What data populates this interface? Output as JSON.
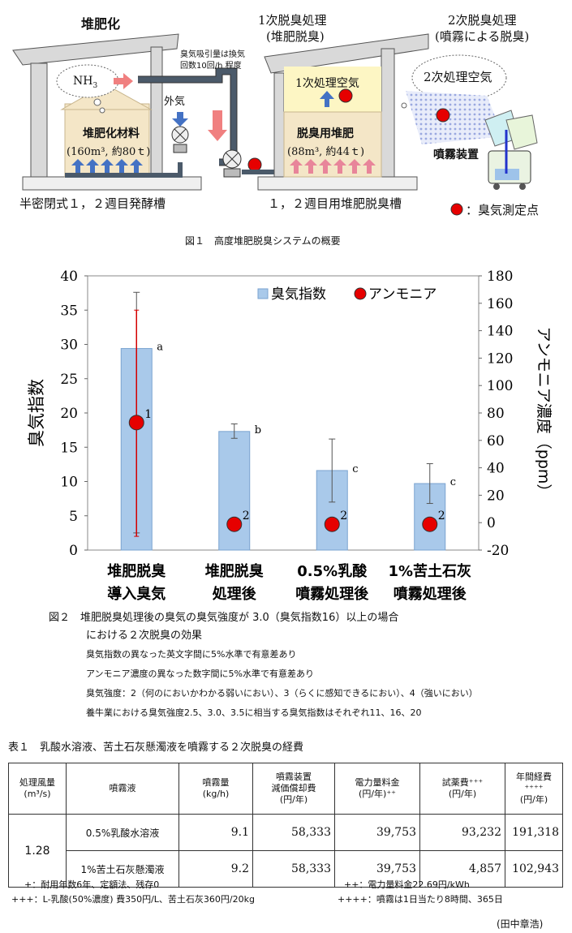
{
  "fig1": {
    "titles": {
      "composting": "堆肥化",
      "primary_line1": "1次脱臭処理",
      "primary_line2": "(堆肥脱臭)",
      "secondary_line1": "2次脱臭処理",
      "secondary_line2": "(噴霧による脱臭)"
    },
    "airflow_note_line1": "臭気吸引量は換気",
    "airflow_note_line2": "回数10回/h 程度",
    "nh3": "NH",
    "nh3_sub": "3",
    "outside_air": "外気",
    "compost_material": "堆肥化材料",
    "compost_material_amount": "(160m³, 約80ｔ)",
    "primary_air": "1次処理空気",
    "deodorizing_compost": "脱臭用堆肥",
    "deodorizing_compost_amount": "(88m³, 約44ｔ)",
    "secondary_air": "2次処理空気",
    "sprayer": "噴霧装置",
    "tank1_label": "半密閉式１，２週目発酵槽",
    "tank2_label": "１，２週目用堆肥脱臭槽",
    "legend_measure": "：臭気測定点",
    "caption": "図１　高度堆肥脱臭システムの概要"
  },
  "chart_data": {
    "type": "bar",
    "categories": [
      [
        "堆肥脱臭",
        "導入臭気"
      ],
      [
        "堆肥脱臭",
        "処理後"
      ],
      [
        "0.5%乳酸",
        "噴霧処理後"
      ],
      [
        "1%苦土石灰",
        "噴霧処理後"
      ]
    ],
    "series": [
      {
        "name": "臭気指数",
        "axis": "left",
        "values": [
          29.4,
          17.3,
          11.6,
          9.7
        ],
        "error_low": [
          2.5,
          16.3,
          7.0,
          6.8
        ],
        "error_high": [
          37.6,
          18.4,
          16.2,
          12.6
        ],
        "labels": [
          "a",
          "b",
          "c",
          "c"
        ]
      },
      {
        "name": "アンモニア",
        "axis": "right",
        "values": [
          73,
          0,
          0,
          0
        ],
        "error_low": [
          -10
        ],
        "error_high": [
          155
        ],
        "labels": [
          "1",
          "2",
          "2",
          "2"
        ]
      }
    ],
    "ylabel": "臭気指数",
    "y2label": "アンモニア濃度（ppm）",
    "ylim": [
      0,
      40
    ],
    "yticks": [
      0,
      5,
      10,
      15,
      20,
      25,
      30,
      35,
      40
    ],
    "y2lim": [
      -20,
      180
    ],
    "y2ticks": [
      -20,
      0,
      20,
      40,
      60,
      80,
      100,
      120,
      140,
      160,
      180
    ],
    "legend": "top-right",
    "colors": {
      "bar": "#a9c9ea",
      "bar_edge": "#7aa3d0",
      "dot": "#e60000",
      "ammonia_error": "#d40000",
      "bar_error": "#555555"
    }
  },
  "fig2": {
    "caption_line1": "図２　堆肥脱臭処理後の臭気の臭気強度が 3.0（臭気指数16）以上の場合",
    "caption_line2": "における２次脱臭の効果",
    "note1": "臭気指数の異なった英文字間に5%水準で有意差あり",
    "note2": "アンモニア濃度の異なった数字間に5%水準で有意差あり",
    "note3": "臭気強度：2（何のにおいかわかる弱いにおい）、3（らくに感知できるにおい）、4（強いにおい）",
    "note4": "養牛業における臭気強度2.5、3.0、3.5に相当する臭気指数はそれぞれ11、16、20"
  },
  "table1": {
    "title": "表１　乳酸水溶液、苦土石灰懸濁液を噴霧する２次脱臭の経費",
    "headers": [
      "処理風量",
      "(m³/s)",
      "噴霧液",
      "噴霧量",
      "(kg/h)",
      "噴霧装置",
      "減価償却費",
      "(円/年)",
      "電力量料金",
      "(円/年)⁺⁺",
      "試薬費⁺⁺⁺",
      "(円/年)",
      "年間経費⁺⁺⁺⁺",
      "(円/年)"
    ],
    "flow": "1.28",
    "rows": [
      {
        "liquid": "0.5%乳酸水溶液",
        "amount": "9.1",
        "depreciation": "58,333",
        "power": "39,753",
        "reagent": "93,232",
        "annual": "191,318"
      },
      {
        "liquid": "1%苦土石灰懸濁液",
        "amount": "9.2",
        "depreciation": "58,333",
        "power": "39,753",
        "reagent": "4,857",
        "annual": "102,943"
      }
    ],
    "footnotes": {
      "f1": "+：耐用年数6年、定額法、残存0",
      "f2": "++：電力量料金22.69円/kWh",
      "f3": "+++：L-乳酸(50%濃度) 費350円/L、苦土石灰360円/20kg",
      "f4": "++++：噴霧は1日当たり8時間、365日"
    },
    "author": "(田中章浩)"
  }
}
